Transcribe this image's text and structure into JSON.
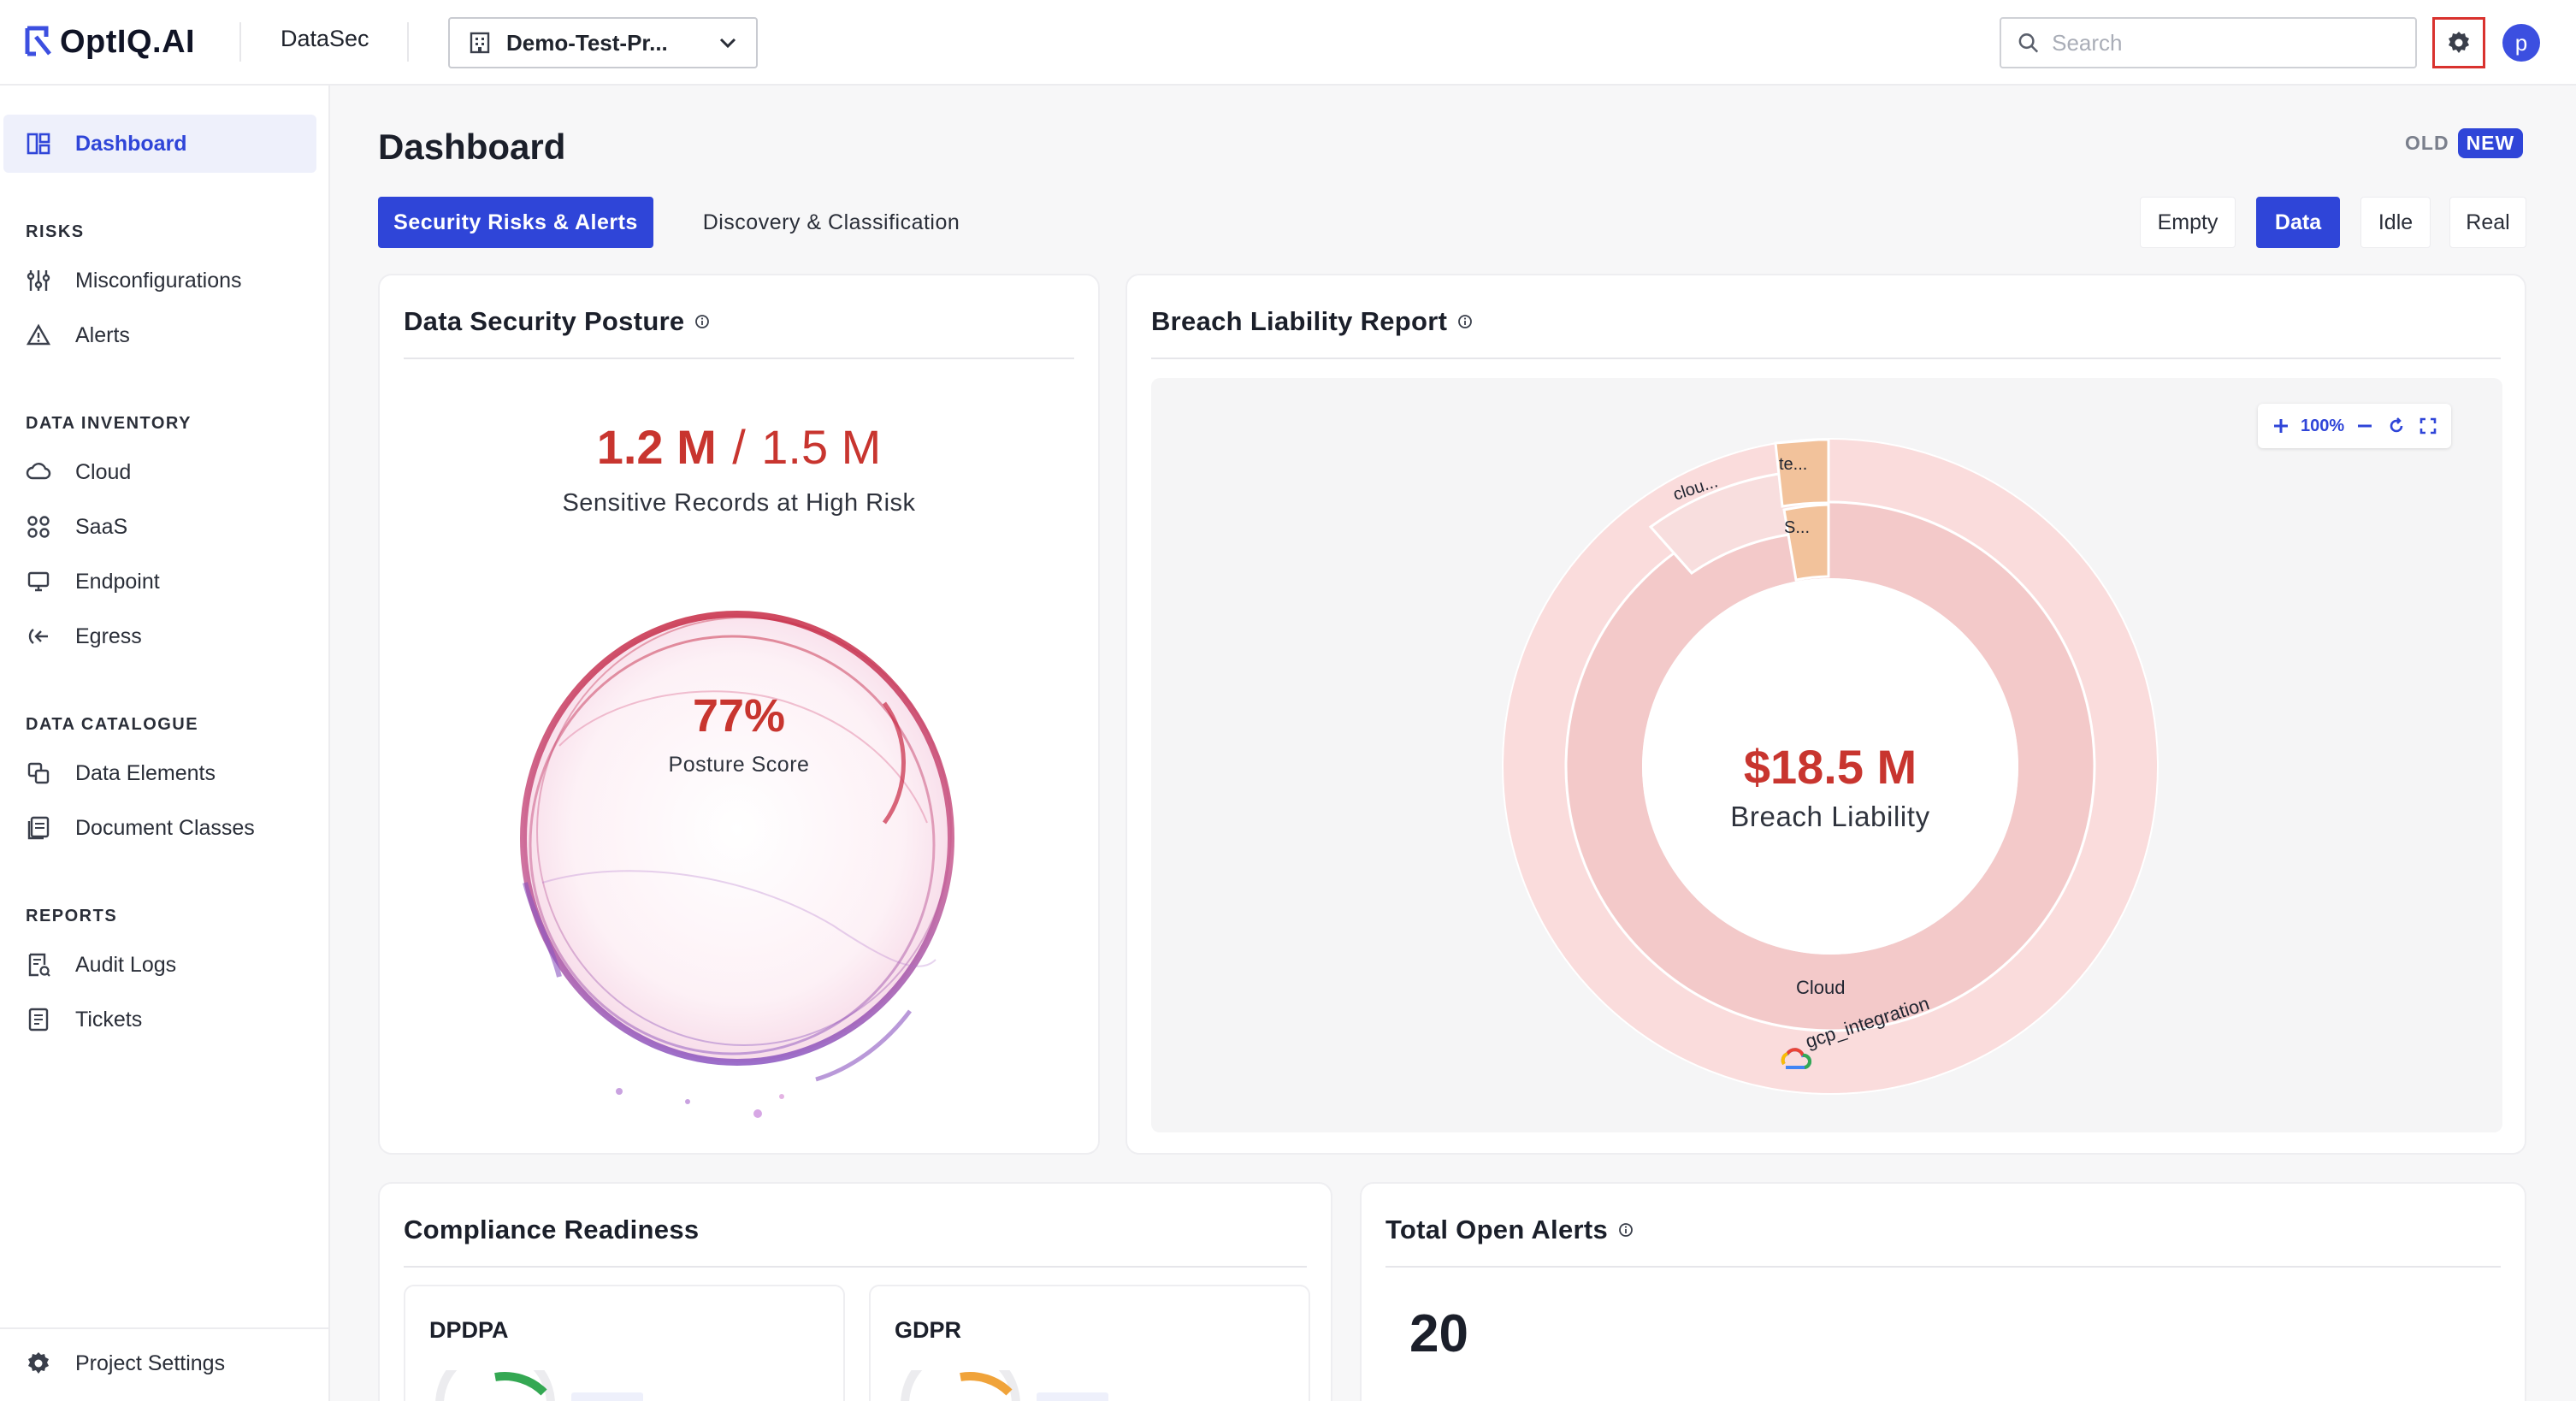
{
  "brand": {
    "logo_text": "OptIQ.AI",
    "app_name": "DataSec"
  },
  "project_selector": {
    "value": "Demo-Test-Pr..."
  },
  "search": {
    "placeholder": "Search",
    "value": ""
  },
  "user": {
    "avatar_letter": "p"
  },
  "sidebar": {
    "dashboard": "Dashboard",
    "sections": {
      "risks": "RISKS",
      "data_inventory": "DATA INVENTORY",
      "data_catalogue": "DATA CATALOGUE",
      "reports": "REPORTS"
    },
    "items": {
      "misconfigurations": "Misconfigurations",
      "alerts": "Alerts",
      "cloud": "Cloud",
      "saas": "SaaS",
      "endpoint": "Endpoint",
      "egress": "Egress",
      "data_elements": "Data Elements",
      "document_classes": "Document Classes",
      "audit_logs": "Audit Logs",
      "tickets": "Tickets"
    },
    "project_settings": "Project Settings"
  },
  "page": {
    "title": "Dashboard",
    "old_label": "OLD",
    "new_label": "NEW"
  },
  "tabs": {
    "security": "Security Risks & Alerts",
    "discovery": "Discovery & Classification"
  },
  "modes": {
    "empty": "Empty",
    "data": "Data",
    "idle": "Idle",
    "real": "Real"
  },
  "posture_card": {
    "title": "Data Security Posture",
    "records_high_risk": "1.2 M",
    "records_separator": "/",
    "records_total": "1.5 M",
    "records_label": "Sensitive Records at High Risk",
    "score": "77%",
    "score_label": "Posture Score"
  },
  "breach_card": {
    "title": "Breach Liability Report",
    "zoom": "100%",
    "amount": "$18.5 M",
    "amount_label": "Breach Liability",
    "segments": {
      "inner_main": "Cloud",
      "inner_small": "S...",
      "outer_main": "gcp_integration",
      "outer_small_1": "clou...",
      "outer_small_2": "te..."
    }
  },
  "compliance_card": {
    "title": "Compliance Readiness",
    "frameworks": [
      "DPDPA",
      "GDPR"
    ]
  },
  "alerts_card": {
    "title": "Total Open Alerts",
    "count": "20"
  },
  "colors": {
    "accent": "#2f45d8",
    "danger": "#c8352f",
    "ring_inner": "#f3c9c9",
    "ring_outer": "#fadcdc",
    "segment_orange": "#f2c29b"
  }
}
